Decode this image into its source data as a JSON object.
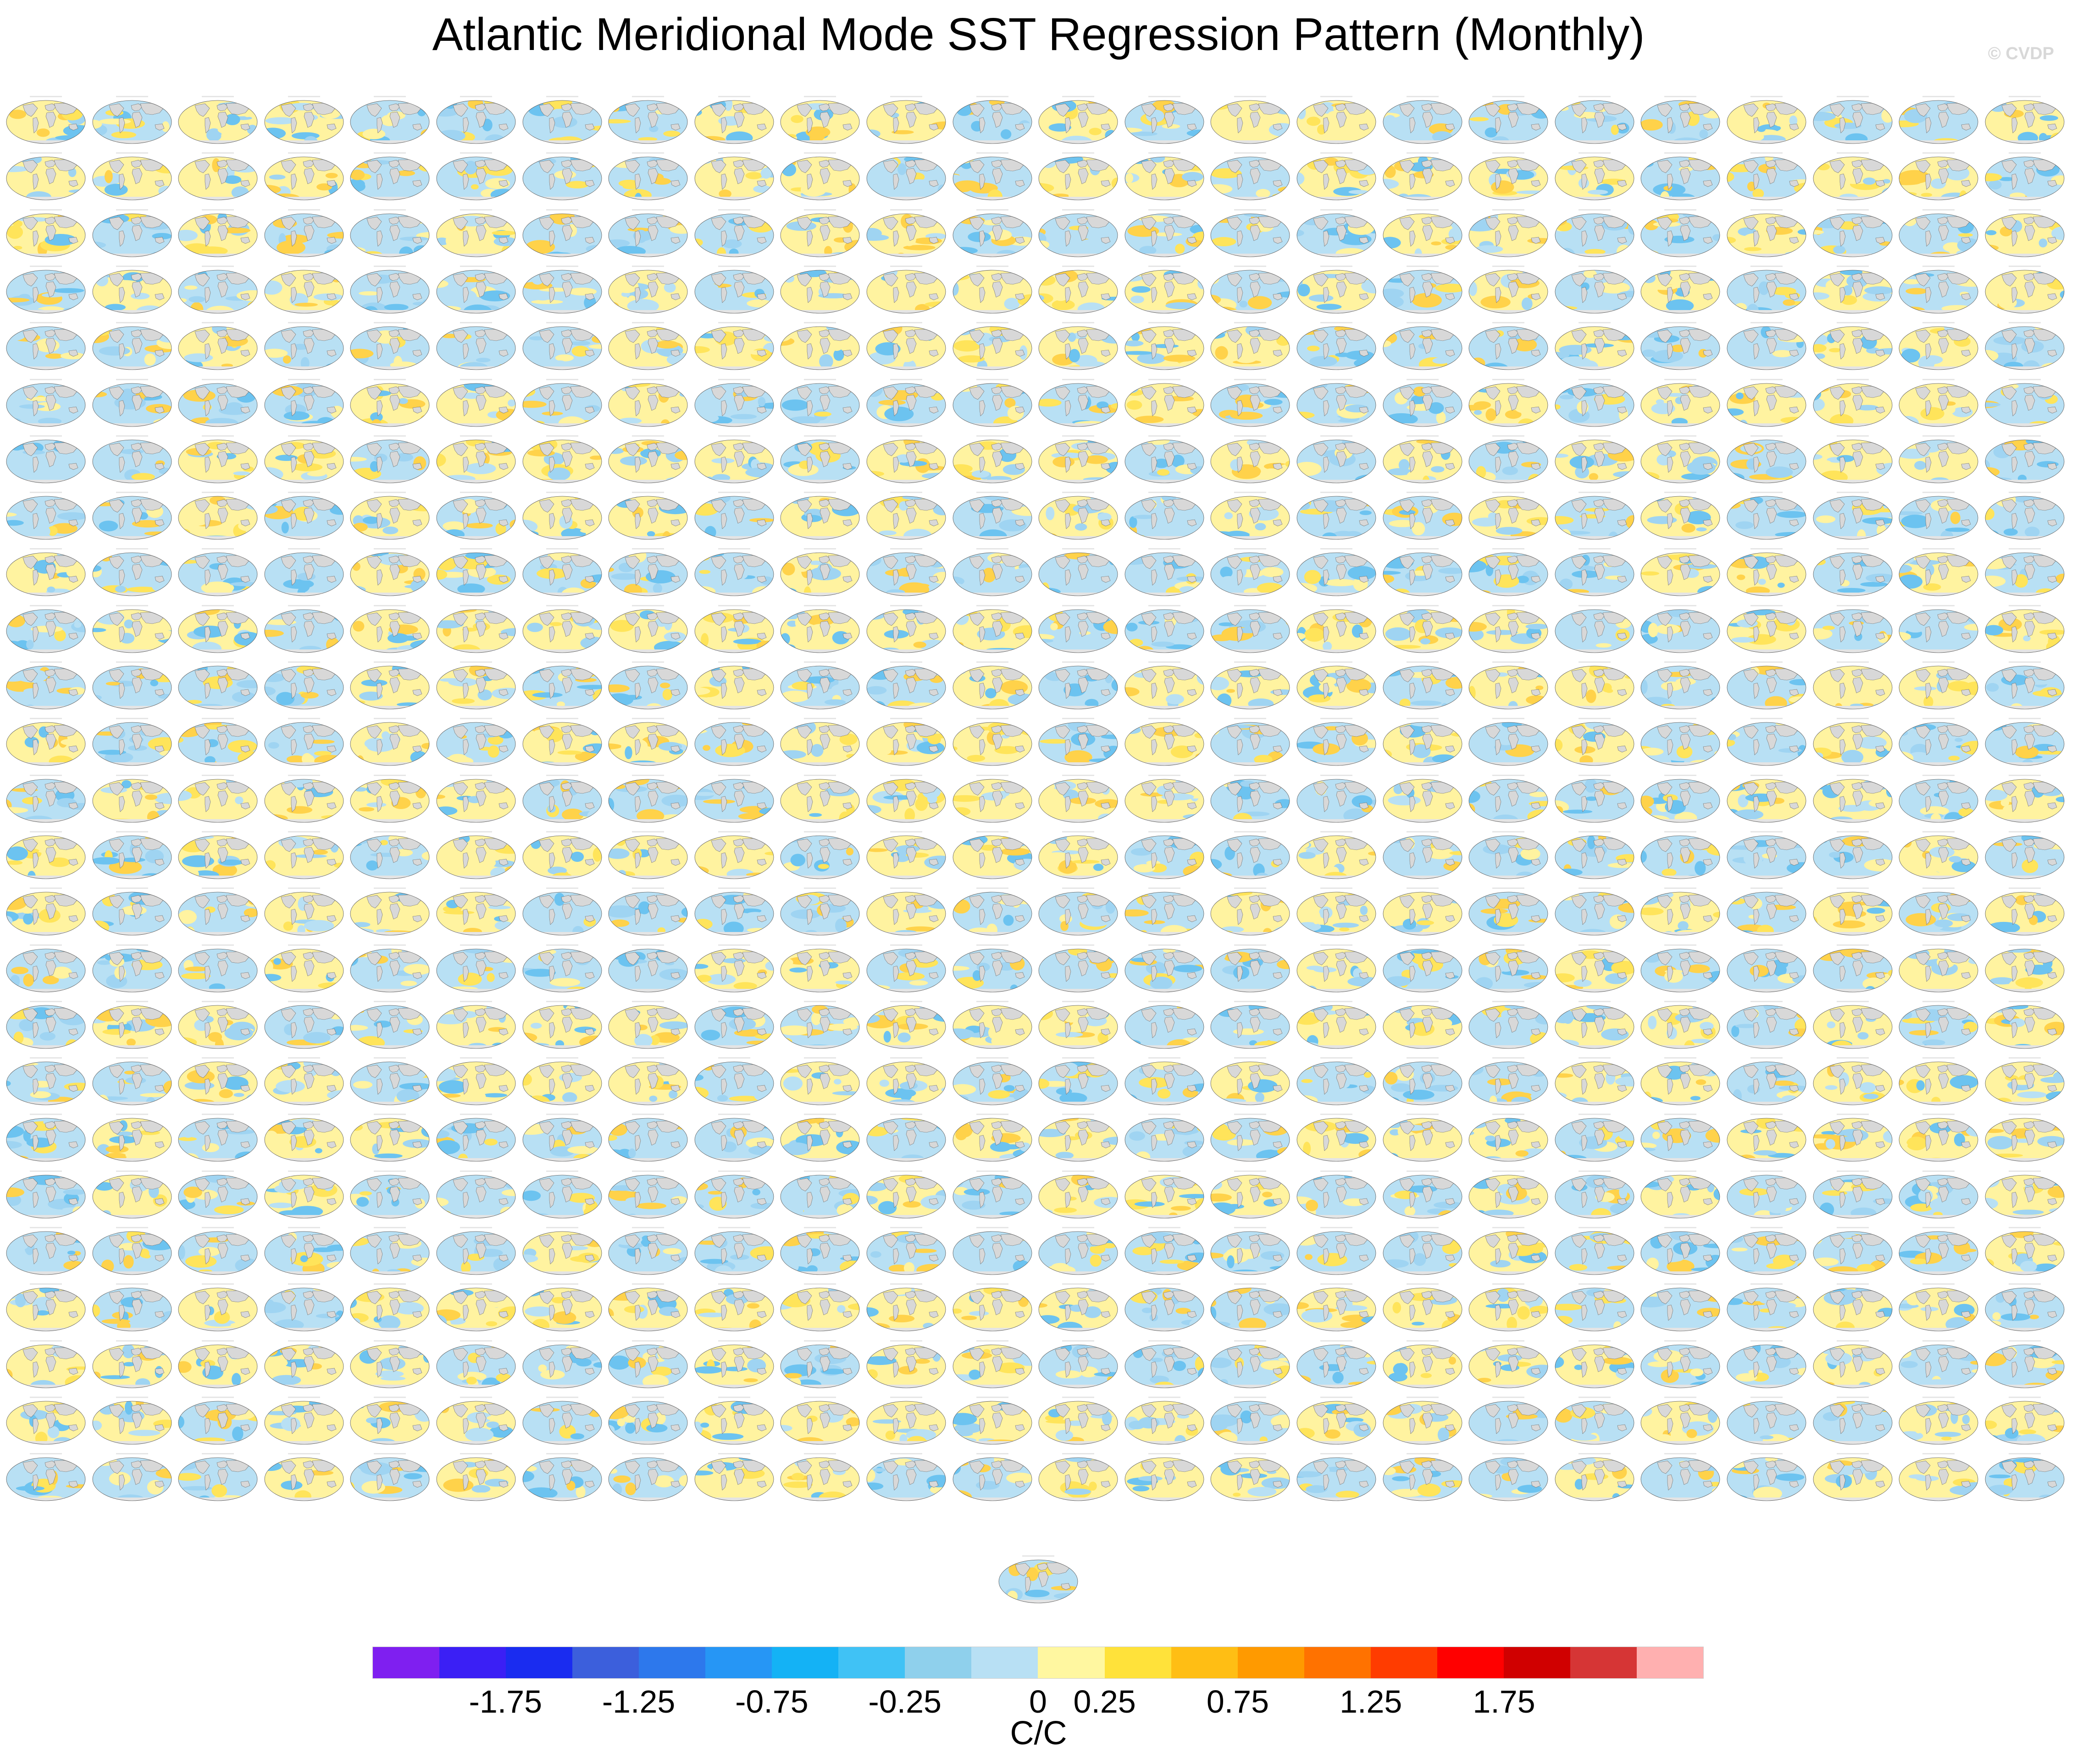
{
  "title": "Atlantic Meridional Mode SST Regression Pattern (Monthly)",
  "watermark": "© CVDP",
  "colorbar": {
    "colors": [
      "#7f1ff0",
      "#3b1ff5",
      "#1a2cf0",
      "#3c5fdc",
      "#2d78ec",
      "#2696f5",
      "#14b2f5",
      "#40c2f5",
      "#8fd0ec",
      "#b8e0f4",
      "#fff7a0",
      "#ffe23a",
      "#ffbe14",
      "#ff9a00",
      "#ff7200",
      "#ff3c00",
      "#ff0000",
      "#d00000",
      "#d63535",
      "#ffb0b0"
    ],
    "tick_labels": [
      "-1.75",
      "-1.25",
      "-0.75",
      "-0.25",
      "0",
      "0.25",
      "0.75",
      "1.25",
      "1.75"
    ],
    "units": "C/C"
  },
  "panels": {
    "rows": 25,
    "cols": 24,
    "extra": 1,
    "ocean_colors": [
      "#b8e0f4",
      "#9fd4f2",
      "#6cc3f0",
      "#fff3a0",
      "#ffe45a",
      "#ffd24a"
    ],
    "land_color": "#d8d8d8"
  }
}
